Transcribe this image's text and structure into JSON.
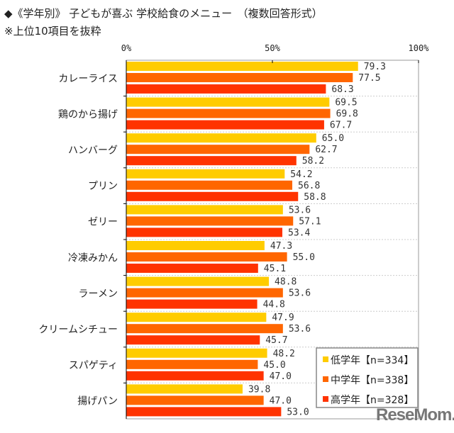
{
  "chart_data": {
    "type": "bar",
    "orientation": "horizontal",
    "title": "◆《学年別》 子どもが喜ぶ 学校給食のメニュー　（複数回答形式）",
    "subtitle": "※上位10項目を抜粋",
    "categories": [
      "カレーライス",
      "鶏のから揚げ",
      "ハンバーグ",
      "プリン",
      "ゼリー",
      "冷凍みかん",
      "ラーメン",
      "クリームシチュー",
      "スパゲティ",
      "揚げパン"
    ],
    "series": [
      {
        "name": "低学年【n=334】",
        "color": "#FFCC00",
        "values": [
          79.3,
          69.5,
          65.0,
          54.2,
          53.6,
          47.3,
          48.8,
          47.9,
          48.2,
          39.8
        ]
      },
      {
        "name": "中学年【n=338】",
        "color": "#FF6600",
        "values": [
          77.5,
          69.8,
          62.7,
          56.8,
          57.1,
          55.0,
          53.6,
          53.6,
          45.0,
          47.0
        ]
      },
      {
        "name": "高学年【n=328】",
        "color": "#FF3300",
        "values": [
          68.3,
          67.7,
          58.2,
          58.8,
          53.4,
          45.1,
          44.8,
          45.7,
          47.0,
          53.0
        ]
      }
    ],
    "xlim": [
      0,
      100
    ],
    "xticks": [
      "0%",
      "50%",
      "100%"
    ],
    "grid": "horizontal dashed separators",
    "legend": "bottom-right"
  },
  "watermark": "ReseMom"
}
